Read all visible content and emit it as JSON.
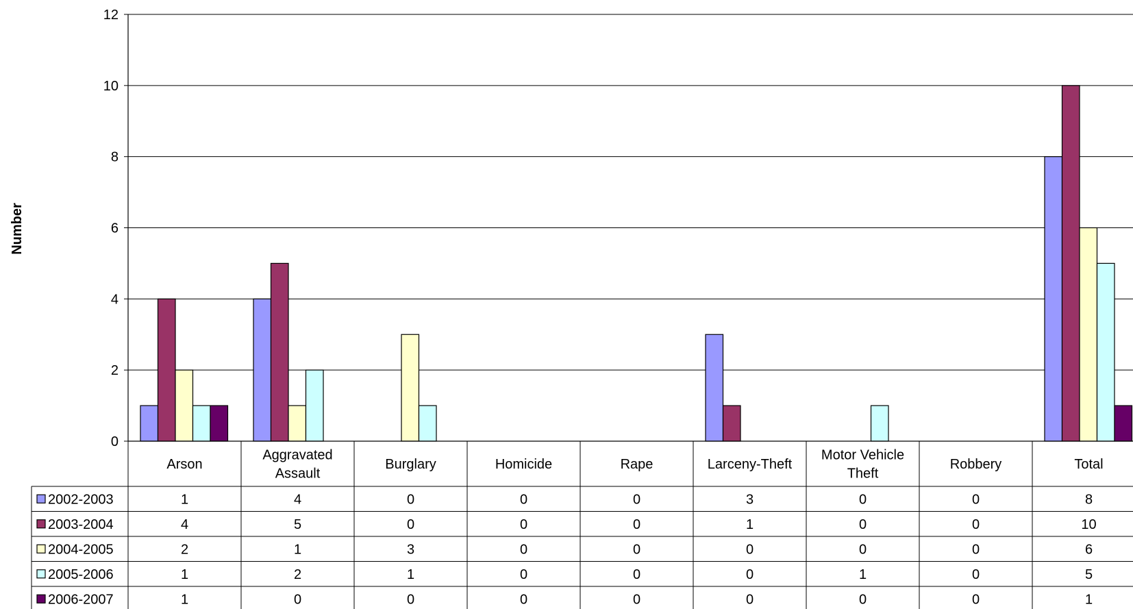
{
  "chart_data": {
    "type": "bar",
    "title": "",
    "xlabel": "",
    "ylabel": "Number",
    "ylim": [
      0,
      12
    ],
    "yticks": [
      0,
      2,
      4,
      6,
      8,
      10,
      12
    ],
    "grid": true,
    "legend_placement": "data-table-left",
    "categories": [
      [
        "Arson"
      ],
      [
        "Aggravated",
        "Assault"
      ],
      [
        "Burglary"
      ],
      [
        "Homicide"
      ],
      [
        "Rape"
      ],
      [
        "Larceny-Theft"
      ],
      [
        "Motor Vehicle",
        "Theft"
      ],
      [
        "Robbery"
      ],
      [
        "Total"
      ]
    ],
    "series": [
      {
        "name": "2002-2003",
        "color": "#9999ff",
        "values": [
          1,
          4,
          0,
          0,
          0,
          3,
          0,
          0,
          8
        ]
      },
      {
        "name": "2003-2004",
        "color": "#993366",
        "values": [
          4,
          5,
          0,
          0,
          0,
          1,
          0,
          0,
          10
        ]
      },
      {
        "name": "2004-2005",
        "color": "#ffffcc",
        "values": [
          2,
          1,
          3,
          0,
          0,
          0,
          0,
          0,
          6
        ]
      },
      {
        "name": "2005-2006",
        "color": "#ccffff",
        "values": [
          1,
          2,
          1,
          0,
          0,
          0,
          1,
          0,
          5
        ]
      },
      {
        "name": "2006-2007",
        "color": "#660066",
        "values": [
          1,
          0,
          0,
          0,
          0,
          0,
          0,
          0,
          1
        ]
      }
    ]
  }
}
